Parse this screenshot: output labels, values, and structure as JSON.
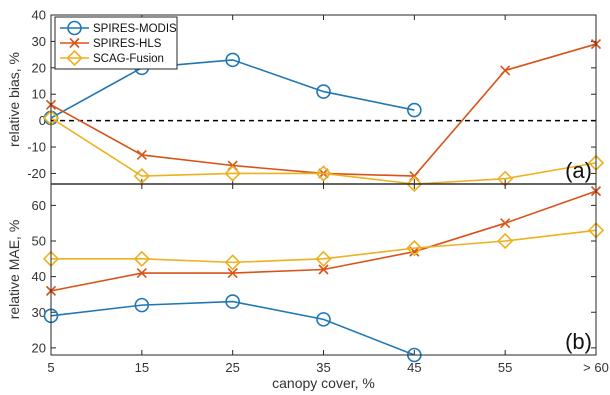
{
  "colors": {
    "SPIRES-MODIS": "#1f77b4",
    "SPIRES-HLS": "#d95319",
    "SCAG-Fusion": "#edb120",
    "axis": "#262626",
    "zero_line": "#000000"
  },
  "chart_data": [
    {
      "type": "line",
      "panel_label": "(a)",
      "ylabel": "relative bias, %",
      "xlabel": "",
      "categories": [
        "5",
        "15",
        "25",
        "35",
        "45",
        "55",
        "> 60"
      ],
      "ylim": [
        -24,
        40
      ],
      "yticks": [
        -20,
        -10,
        0,
        10,
        20,
        30,
        40
      ],
      "grid": false,
      "legend": "top-left",
      "reference_line": 0,
      "series": [
        {
          "name": "SPIRES-MODIS",
          "marker": "circle",
          "values": [
            1,
            20,
            23,
            11,
            4,
            null,
            null
          ]
        },
        {
          "name": "SPIRES-HLS",
          "marker": "x",
          "values": [
            6,
            -13,
            -17,
            -20,
            -21,
            19,
            29
          ]
        },
        {
          "name": "SCAG-Fusion",
          "marker": "diamond",
          "values": [
            1,
            -21,
            -20,
            -20,
            -24,
            -22,
            -16
          ]
        }
      ]
    },
    {
      "type": "line",
      "panel_label": "(b)",
      "ylabel": "relative MAE, %",
      "xlabel": "canopy cover, %",
      "categories": [
        "5",
        "15",
        "25",
        "35",
        "45",
        "55",
        "> 60"
      ],
      "ylim": [
        18,
        66
      ],
      "yticks": [
        20,
        30,
        40,
        50,
        60
      ],
      "grid": false,
      "series": [
        {
          "name": "SPIRES-MODIS",
          "marker": "circle",
          "values": [
            29,
            32,
            33,
            28,
            18,
            null,
            null
          ]
        },
        {
          "name": "SPIRES-HLS",
          "marker": "x",
          "values": [
            36,
            41,
            41,
            42,
            47,
            55,
            64
          ]
        },
        {
          "name": "SCAG-Fusion",
          "marker": "diamond",
          "values": [
            45,
            45,
            44,
            45,
            48,
            50,
            53
          ]
        }
      ]
    }
  ]
}
